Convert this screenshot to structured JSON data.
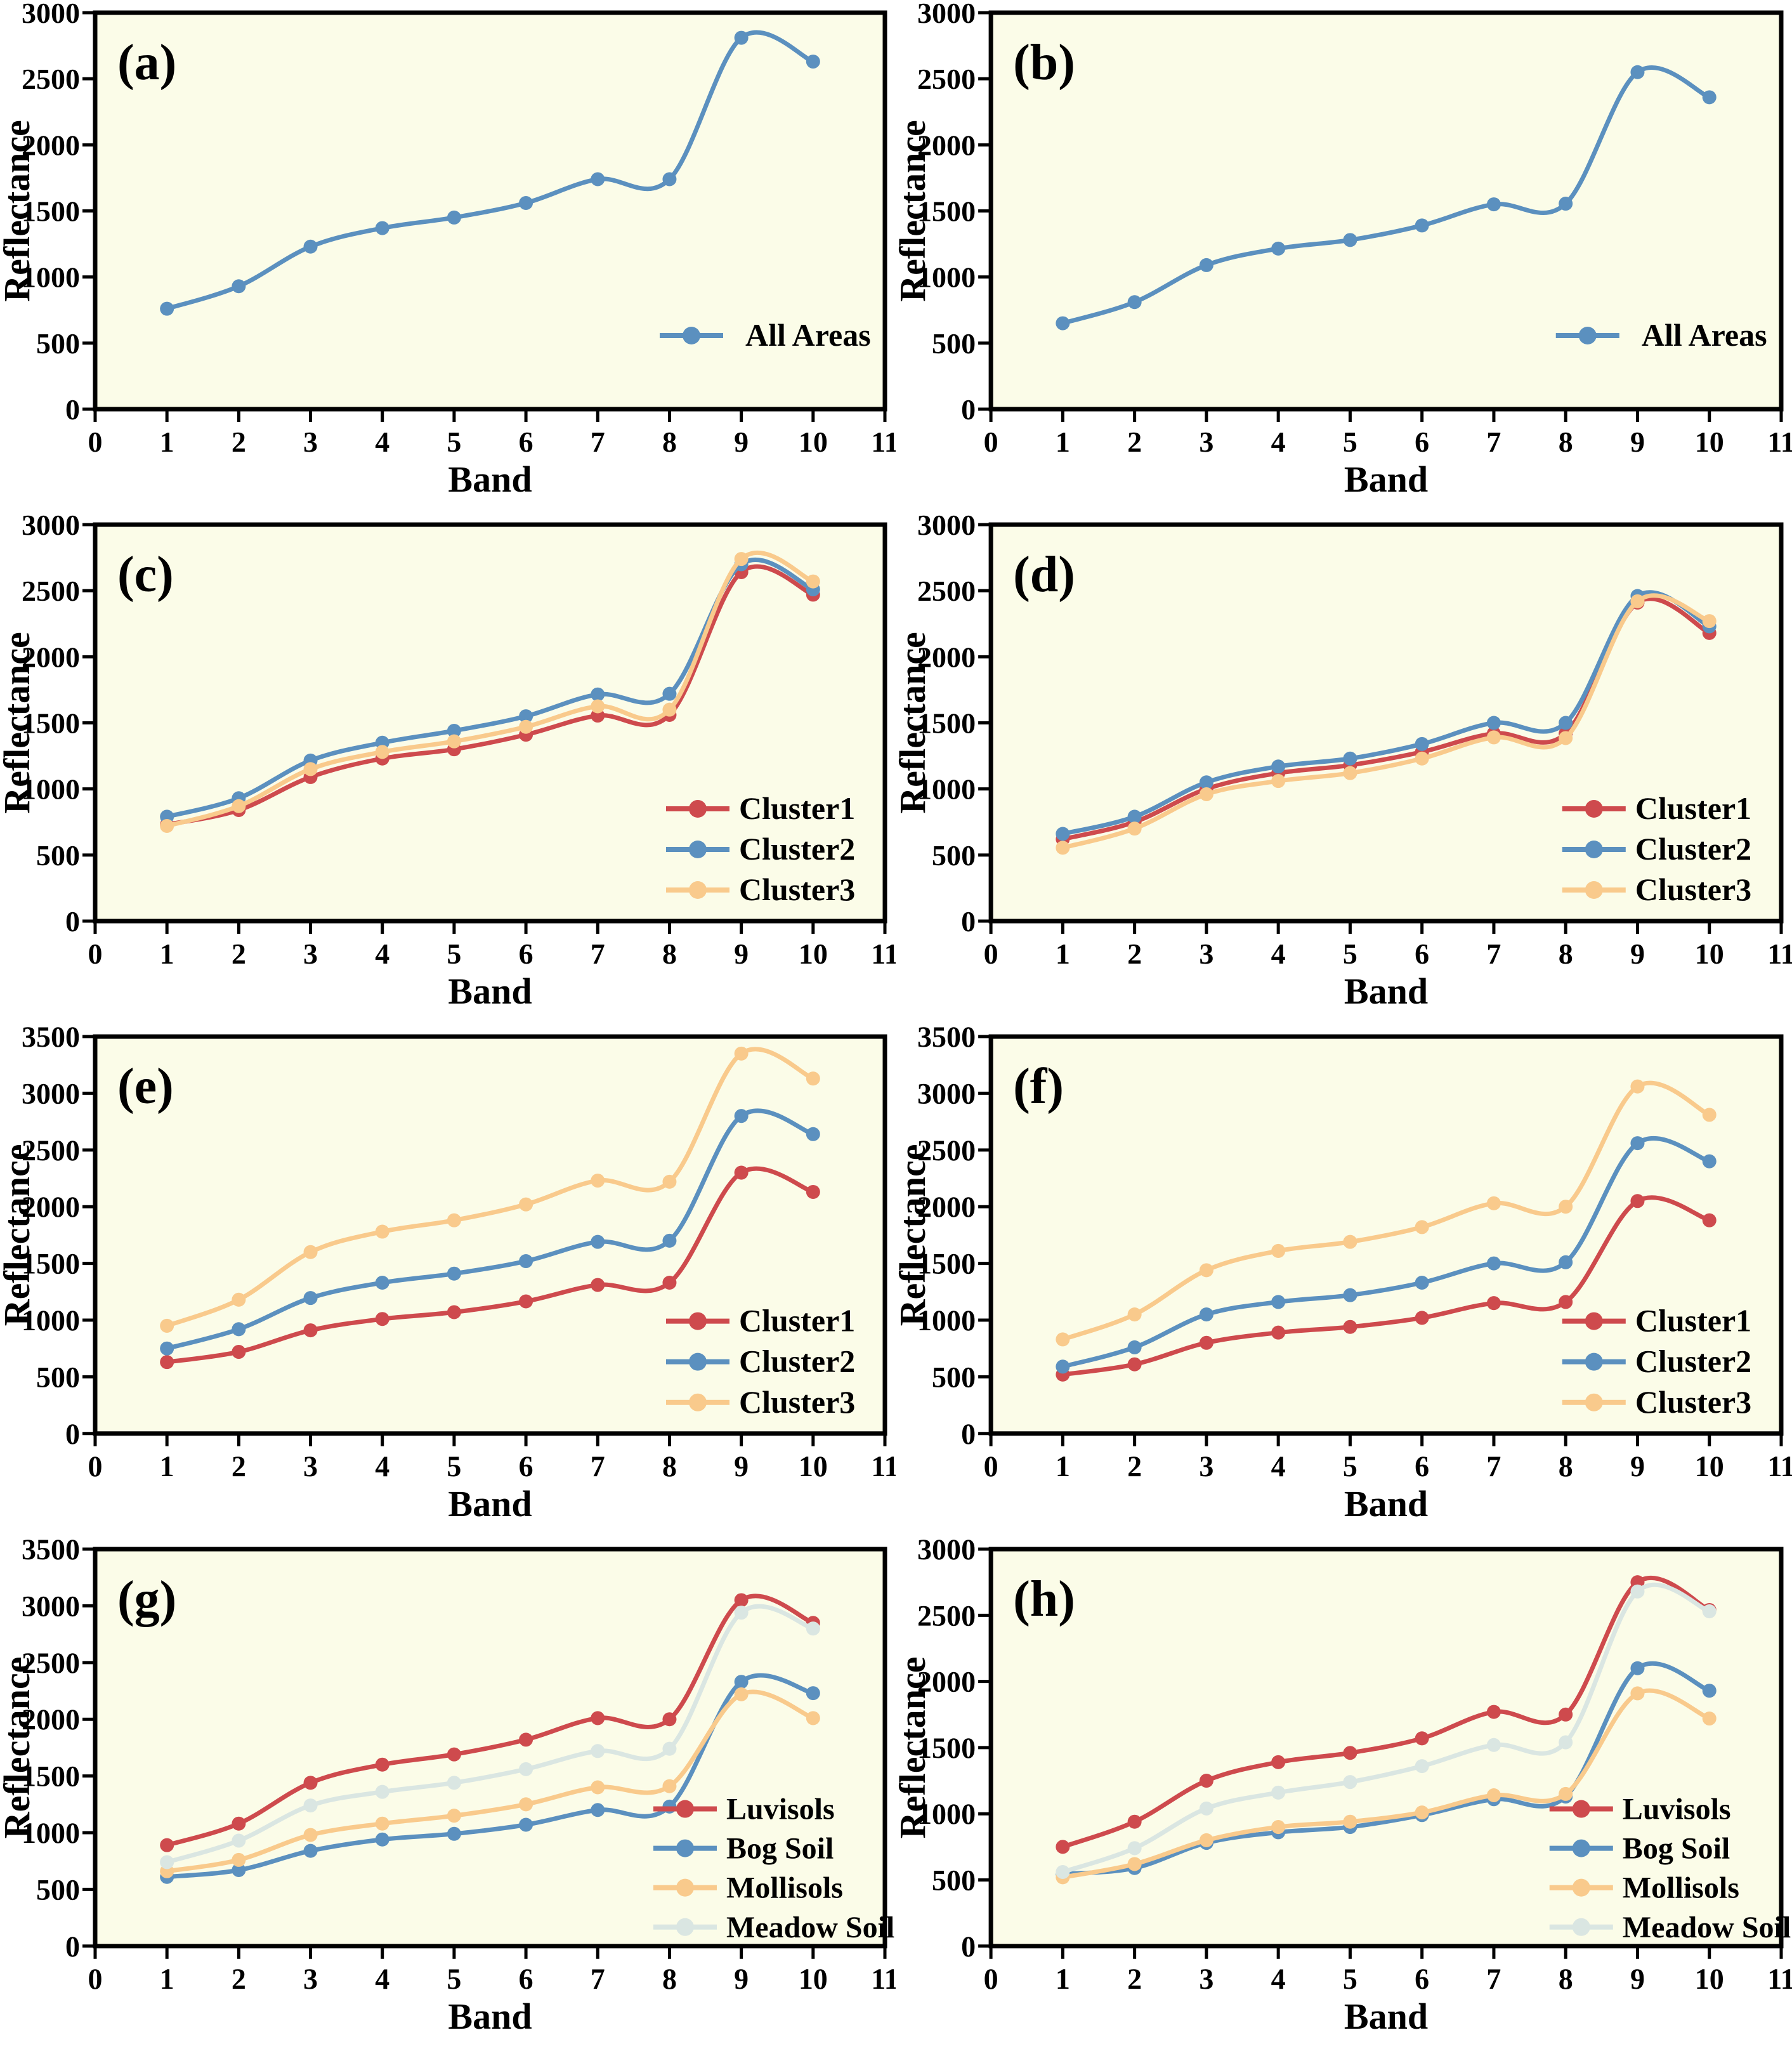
{
  "figure": {
    "background": "#ffffff",
    "plot_background": "#FBFCE8",
    "axis_color": "#000000",
    "palette": {
      "blue": "#5B90BF",
      "red": "#CE4A4D",
      "yellow": "#F9CA8C",
      "pale": "#DAE6E2"
    }
  },
  "chart_data": [
    {
      "id": "a",
      "panel_label": "(a)",
      "type": "line",
      "xlabel": "Band",
      "ylabel": "Reflectance",
      "x": [
        1,
        2,
        3,
        4,
        5,
        6,
        7,
        8,
        9,
        10
      ],
      "xlim": [
        0,
        11
      ],
      "xticks": [
        0,
        1,
        2,
        3,
        4,
        5,
        6,
        7,
        8,
        9,
        10,
        11
      ],
      "ylim": [
        0,
        3000
      ],
      "yticks": [
        0,
        500,
        1000,
        1500,
        2000,
        2500,
        3000
      ],
      "grid": false,
      "legend_position": "lower right",
      "series": [
        {
          "name": "All Areas",
          "color": "#5B90BF",
          "values": [
            760,
            930,
            1230,
            1370,
            1450,
            1560,
            1740,
            1740,
            2810,
            2630
          ]
        }
      ]
    },
    {
      "id": "b",
      "panel_label": "(b)",
      "type": "line",
      "xlabel": "Band",
      "ylabel": "Reflectance",
      "x": [
        1,
        2,
        3,
        4,
        5,
        6,
        7,
        8,
        9,
        10
      ],
      "xlim": [
        0,
        11
      ],
      "xticks": [
        0,
        1,
        2,
        3,
        4,
        5,
        6,
        7,
        8,
        9,
        10,
        11
      ],
      "ylim": [
        0,
        3000
      ],
      "yticks": [
        0,
        500,
        1000,
        1500,
        2000,
        2500,
        3000
      ],
      "grid": false,
      "legend_position": "lower right",
      "series": [
        {
          "name": "All Areas",
          "color": "#5B90BF",
          "values": [
            650,
            810,
            1090,
            1215,
            1280,
            1390,
            1550,
            1555,
            2550,
            2360
          ]
        }
      ]
    },
    {
      "id": "c",
      "panel_label": "(c)",
      "type": "line",
      "xlabel": "Band",
      "ylabel": "Reflectance",
      "x": [
        1,
        2,
        3,
        4,
        5,
        6,
        7,
        8,
        9,
        10
      ],
      "xlim": [
        0,
        11
      ],
      "xticks": [
        0,
        1,
        2,
        3,
        4,
        5,
        6,
        7,
        8,
        9,
        10,
        11
      ],
      "ylim": [
        0,
        3000
      ],
      "yticks": [
        0,
        500,
        1000,
        1500,
        2000,
        2500,
        3000
      ],
      "grid": false,
      "legend_position": "lower right",
      "series": [
        {
          "name": "Cluster1",
          "color": "#CE4A4D",
          "values": [
            730,
            840,
            1090,
            1230,
            1300,
            1410,
            1555,
            1560,
            2640,
            2470
          ]
        },
        {
          "name": "Cluster2",
          "color": "#5B90BF",
          "values": [
            790,
            930,
            1215,
            1350,
            1440,
            1550,
            1715,
            1720,
            2700,
            2510
          ]
        },
        {
          "name": "Cluster3",
          "color": "#F9CA8C",
          "values": [
            720,
            870,
            1150,
            1280,
            1360,
            1470,
            1625,
            1600,
            2740,
            2570
          ]
        }
      ]
    },
    {
      "id": "d",
      "panel_label": "(d)",
      "type": "line",
      "xlabel": "Band",
      "ylabel": "Reflectance",
      "x": [
        1,
        2,
        3,
        4,
        5,
        6,
        7,
        8,
        9,
        10
      ],
      "xlim": [
        0,
        11
      ],
      "xticks": [
        0,
        1,
        2,
        3,
        4,
        5,
        6,
        7,
        8,
        9,
        10,
        11
      ],
      "ylim": [
        0,
        3000
      ],
      "yticks": [
        0,
        500,
        1000,
        1500,
        2000,
        2500,
        3000
      ],
      "grid": false,
      "legend_position": "lower right",
      "series": [
        {
          "name": "Cluster1",
          "color": "#CE4A4D",
          "values": [
            620,
            750,
            1000,
            1120,
            1180,
            1280,
            1420,
            1420,
            2410,
            2180
          ]
        },
        {
          "name": "Cluster2",
          "color": "#5B90BF",
          "values": [
            660,
            790,
            1050,
            1170,
            1230,
            1340,
            1500,
            1500,
            2460,
            2230
          ]
        },
        {
          "name": "Cluster3",
          "color": "#F9CA8C",
          "values": [
            555,
            700,
            960,
            1060,
            1120,
            1230,
            1390,
            1385,
            2420,
            2270
          ]
        }
      ]
    },
    {
      "id": "e",
      "panel_label": "(e)",
      "type": "line",
      "xlabel": "Band",
      "ylabel": "Reflectance",
      "x": [
        1,
        2,
        3,
        4,
        5,
        6,
        7,
        8,
        9,
        10
      ],
      "xlim": [
        0,
        11
      ],
      "xticks": [
        0,
        1,
        2,
        3,
        4,
        5,
        6,
        7,
        8,
        9,
        10,
        11
      ],
      "ylim": [
        0,
        3500
      ],
      "yticks": [
        0,
        500,
        1000,
        1500,
        2000,
        2500,
        3000,
        3500
      ],
      "grid": false,
      "legend_position": "lower right",
      "series": [
        {
          "name": "Cluster1",
          "color": "#CE4A4D",
          "values": [
            630,
            720,
            910,
            1010,
            1070,
            1165,
            1310,
            1330,
            2300,
            2130
          ]
        },
        {
          "name": "Cluster2",
          "color": "#5B90BF",
          "values": [
            750,
            920,
            1195,
            1330,
            1410,
            1520,
            1690,
            1700,
            2800,
            2640
          ]
        },
        {
          "name": "Cluster3",
          "color": "#F9CA8C",
          "values": [
            950,
            1180,
            1600,
            1780,
            1880,
            2020,
            2230,
            2220,
            3350,
            3130
          ]
        }
      ]
    },
    {
      "id": "f",
      "panel_label": "(f)",
      "type": "line",
      "xlabel": "Band",
      "ylabel": "Reflectance",
      "x": [
        1,
        2,
        3,
        4,
        5,
        6,
        7,
        8,
        9,
        10
      ],
      "xlim": [
        0,
        11
      ],
      "xticks": [
        0,
        1,
        2,
        3,
        4,
        5,
        6,
        7,
        8,
        9,
        10,
        11
      ],
      "ylim": [
        0,
        3500
      ],
      "yticks": [
        0,
        500,
        1000,
        1500,
        2000,
        2500,
        3000,
        3500
      ],
      "grid": false,
      "legend_position": "lower right",
      "series": [
        {
          "name": "Cluster1",
          "color": "#CE4A4D",
          "values": [
            520,
            610,
            800,
            890,
            940,
            1020,
            1150,
            1160,
            2050,
            1880
          ]
        },
        {
          "name": "Cluster2",
          "color": "#5B90BF",
          "values": [
            590,
            760,
            1050,
            1160,
            1220,
            1330,
            1500,
            1510,
            2560,
            2400
          ]
        },
        {
          "name": "Cluster3",
          "color": "#F9CA8C",
          "values": [
            830,
            1050,
            1440,
            1610,
            1690,
            1820,
            2030,
            2000,
            3060,
            2810
          ]
        }
      ]
    },
    {
      "id": "g",
      "panel_label": "(g)",
      "type": "line",
      "xlabel": "Band",
      "ylabel": "Reflectance",
      "x": [
        1,
        2,
        3,
        4,
        5,
        6,
        7,
        8,
        9,
        10
      ],
      "xlim": [
        0,
        11
      ],
      "xticks": [
        0,
        1,
        2,
        3,
        4,
        5,
        6,
        7,
        8,
        9,
        10,
        11
      ],
      "ylim": [
        0,
        3500
      ],
      "yticks": [
        0,
        500,
        1000,
        1500,
        2000,
        2500,
        3000,
        3500
      ],
      "grid": false,
      "legend_position": "lower right",
      "series": [
        {
          "name": "Luvisols",
          "color": "#CE4A4D",
          "values": [
            890,
            1080,
            1440,
            1600,
            1690,
            1820,
            2010,
            2000,
            3050,
            2850
          ]
        },
        {
          "name": "Bog Soil",
          "color": "#5B90BF",
          "values": [
            610,
            670,
            840,
            940,
            990,
            1070,
            1200,
            1230,
            2330,
            2230
          ]
        },
        {
          "name": "Mollisols",
          "color": "#F9CA8C",
          "values": [
            660,
            760,
            980,
            1080,
            1150,
            1250,
            1400,
            1410,
            2220,
            2010
          ]
        },
        {
          "name": "Meadow Soil",
          "color": "#DAE6E2",
          "values": [
            740,
            930,
            1240,
            1360,
            1440,
            1560,
            1720,
            1740,
            2940,
            2800
          ]
        }
      ]
    },
    {
      "id": "h",
      "panel_label": "(h)",
      "type": "line",
      "xlabel": "Band",
      "ylabel": "Reflectance",
      "x": [
        1,
        2,
        3,
        4,
        5,
        6,
        7,
        8,
        9,
        10
      ],
      "xlim": [
        0,
        11
      ],
      "xticks": [
        0,
        1,
        2,
        3,
        4,
        5,
        6,
        7,
        8,
        9,
        10,
        11
      ],
      "ylim": [
        0,
        3000
      ],
      "yticks": [
        0,
        500,
        1000,
        1500,
        2000,
        2500,
        3000
      ],
      "grid": false,
      "legend_position": "lower right",
      "series": [
        {
          "name": "Luvisols",
          "color": "#CE4A4D",
          "values": [
            750,
            940,
            1250,
            1390,
            1460,
            1570,
            1770,
            1750,
            2750,
            2540
          ]
        },
        {
          "name": "Bog Soil",
          "color": "#5B90BF",
          "values": [
            545,
            590,
            780,
            860,
            900,
            990,
            1110,
            1130,
            2100,
            1930
          ]
        },
        {
          "name": "Mollisols",
          "color": "#F9CA8C",
          "values": [
            520,
            620,
            800,
            900,
            940,
            1010,
            1140,
            1150,
            1910,
            1720
          ]
        },
        {
          "name": "Meadow Soil",
          "color": "#DAE6E2",
          "values": [
            560,
            740,
            1040,
            1160,
            1240,
            1360,
            1520,
            1540,
            2680,
            2530
          ]
        }
      ]
    }
  ]
}
